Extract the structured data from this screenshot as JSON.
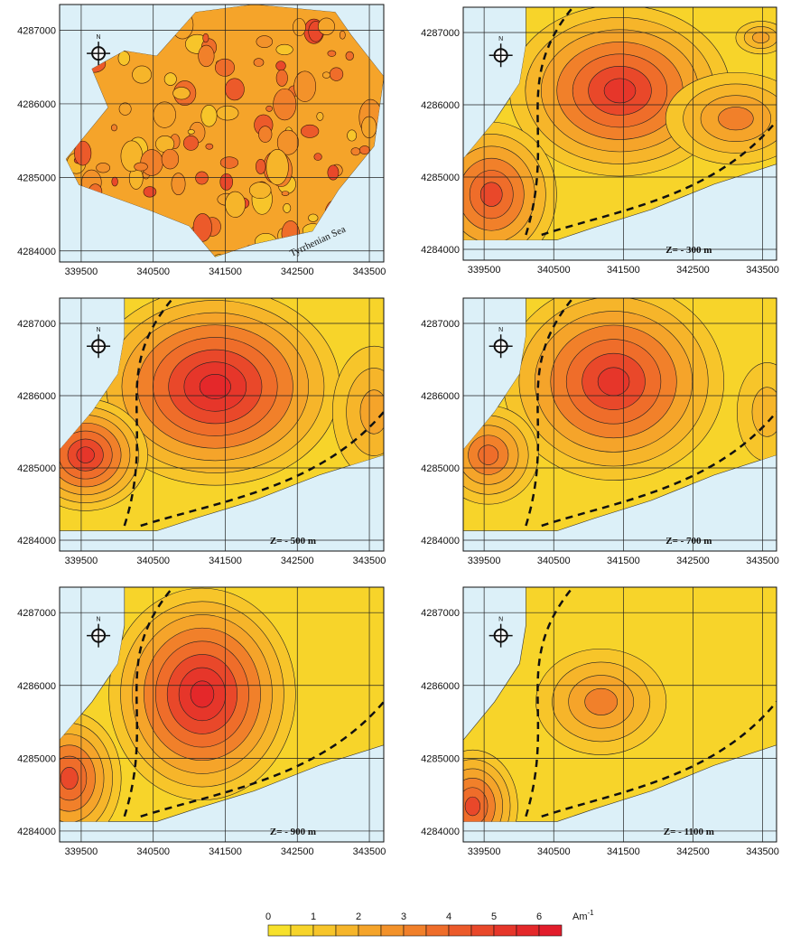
{
  "north_label": "N",
  "annotation": "Tyrrhenian Sea",
  "panels": [
    {
      "xlim": [
        339200,
        343700
      ],
      "ylim": [
        4283850,
        4287350
      ],
      "xticks": [
        339500,
        340500,
        341500,
        342500,
        343500
      ],
      "yticks": [
        4284000,
        4285000,
        4286000,
        4287000
      ]
    },
    {
      "depth_label": "Z= - 300 m",
      "xlim": [
        339200,
        343700
      ],
      "ylim": [
        4283850,
        4287350
      ],
      "xticks": [
        339500,
        340500,
        341500,
        342500,
        343500
      ],
      "yticks": [
        4284000,
        4285000,
        4286000,
        4287000
      ]
    },
    {
      "depth_label": "Z= - 500 m",
      "xlim": [
        339200,
        343700
      ],
      "ylim": [
        4283850,
        4287350
      ],
      "xticks": [
        339500,
        340500,
        341500,
        342500,
        343500
      ],
      "yticks": [
        4284000,
        4285000,
        4286000,
        4287000
      ]
    },
    {
      "depth_label": "Z= - 700 m",
      "xlim": [
        339200,
        343700
      ],
      "ylim": [
        4283850,
        4287350
      ],
      "xticks": [
        339500,
        340500,
        341500,
        342500,
        343500
      ],
      "yticks": [
        4284000,
        4285000,
        4286000,
        4287000
      ]
    },
    {
      "depth_label": "Z= - 900 m",
      "xlim": [
        339200,
        343700
      ],
      "ylim": [
        4283850,
        4287350
      ],
      "xticks": [
        339500,
        340500,
        341500,
        342500,
        343500
      ],
      "yticks": [
        4284000,
        4285000,
        4286000,
        4287000
      ]
    },
    {
      "depth_label": "Z= - 1100 m",
      "xlim": [
        339200,
        343700
      ],
      "ylim": [
        4283850,
        4287350
      ],
      "xticks": [
        339500,
        340500,
        341500,
        342500,
        343500
      ],
      "yticks": [
        4284000,
        4285000,
        4286000,
        4287000
      ]
    }
  ],
  "colorbar": {
    "lim": [
      0,
      6.5
    ],
    "ticks": [
      0,
      1,
      2,
      3,
      4,
      5,
      6
    ],
    "unit": "Am",
    "unit_exp": "-1",
    "colors": [
      "#f7e12b",
      "#f7d42a",
      "#f7c52a",
      "#f6b52a",
      "#f5a42a",
      "#f3922a",
      "#f1802a",
      "#ef6d2a",
      "#ec5a2a",
      "#e9482a",
      "#e6362a",
      "#e4282a",
      "#e21d2b"
    ]
  }
}
